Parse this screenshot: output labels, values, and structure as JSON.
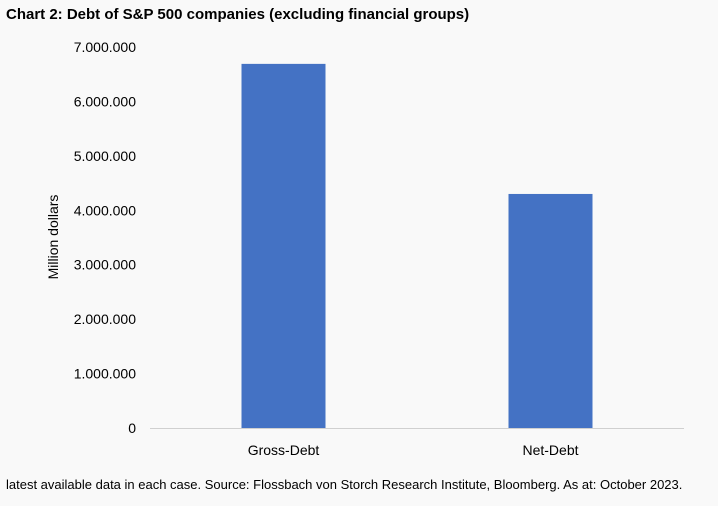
{
  "chart_data": {
    "type": "bar",
    "title": "Chart 2: Debt of S&P 500 companies (excluding financial groups)",
    "categories": [
      "Gross-Debt",
      "Net-Debt"
    ],
    "values": [
      6690000,
      4300000
    ],
    "xlabel": "",
    "ylabel": "Million dollars",
    "ylim": [
      0,
      7000000
    ],
    "yticks": [
      0,
      1000000,
      2000000,
      3000000,
      4000000,
      5000000,
      6000000,
      7000000
    ],
    "ytick_labels": [
      "0",
      "1.000.000",
      "2.000.000",
      "3.000.000",
      "4.000.000",
      "5.000.000",
      "6.000.000",
      "7.000.000"
    ],
    "grid": false,
    "bar_color": "#4472C4",
    "footnote": "latest available data in each case. Source: Flossbach von Storch Research Institute, Bloomberg. As at: October 2023."
  }
}
